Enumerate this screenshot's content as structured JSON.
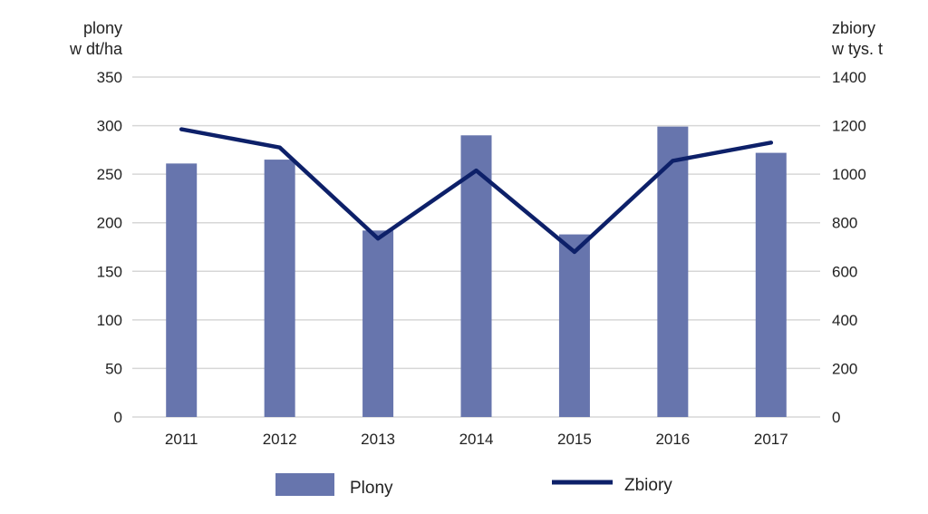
{
  "chart_data": {
    "type": "bar",
    "categories": [
      "2011",
      "2012",
      "2013",
      "2014",
      "2015",
      "2016",
      "2017"
    ],
    "series": [
      {
        "name": "Plony",
        "type": "bar",
        "axis": "left",
        "color": "#6775ad",
        "values": [
          261,
          265,
          192,
          290,
          188,
          299,
          272
        ]
      },
      {
        "name": "Zbiory",
        "type": "line",
        "axis": "right",
        "color": "#0d2069",
        "values": [
          1185,
          1110,
          735,
          1015,
          680,
          1055,
          1130
        ]
      }
    ],
    "y_left": {
      "label_lines": [
        "plony",
        "w dt/ha"
      ],
      "ylim": [
        0,
        350
      ],
      "ticks": [
        "0",
        "50",
        "100",
        "150",
        "200",
        "250",
        "300",
        "350"
      ]
    },
    "y_right": {
      "label_lines": [
        "zbiory",
        "w tys. t"
      ],
      "ylim": [
        0,
        1400
      ],
      "ticks": [
        "0",
        "200",
        "400",
        "600",
        "800",
        "1000",
        "1200",
        "1400"
      ]
    },
    "grid": true,
    "legend": {
      "position": "bottom",
      "items": [
        {
          "label": "Plony",
          "kind": "bar",
          "color": "#6775ad"
        },
        {
          "label": "Zbiory",
          "kind": "line",
          "color": "#0d2069"
        }
      ]
    }
  }
}
